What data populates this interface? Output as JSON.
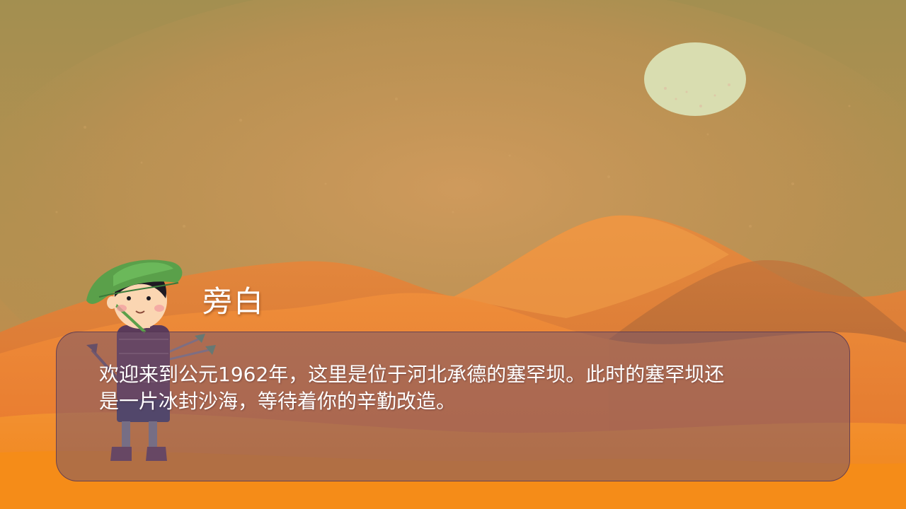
{
  "scene": {
    "description_key": "desert-dunes",
    "colors": {
      "sky_top": "#a38f50",
      "sky_mid": "#c9955a",
      "moon": "#d9ddb0",
      "dune_far": "#e07a38",
      "dune_mid": "#f08a35",
      "dune_near": "#f5901f",
      "dialog_bg": "#73546e"
    }
  },
  "dialog": {
    "speaker": "旁白",
    "lines": [
      "欢迎来到公元1962年，这里是位于河北承德的塞罕坝。此时的塞罕坝还",
      "是一片冰封沙海，等待着你的辛勤改造。"
    ]
  },
  "character": {
    "icon": "farmer-boy-icon"
  }
}
